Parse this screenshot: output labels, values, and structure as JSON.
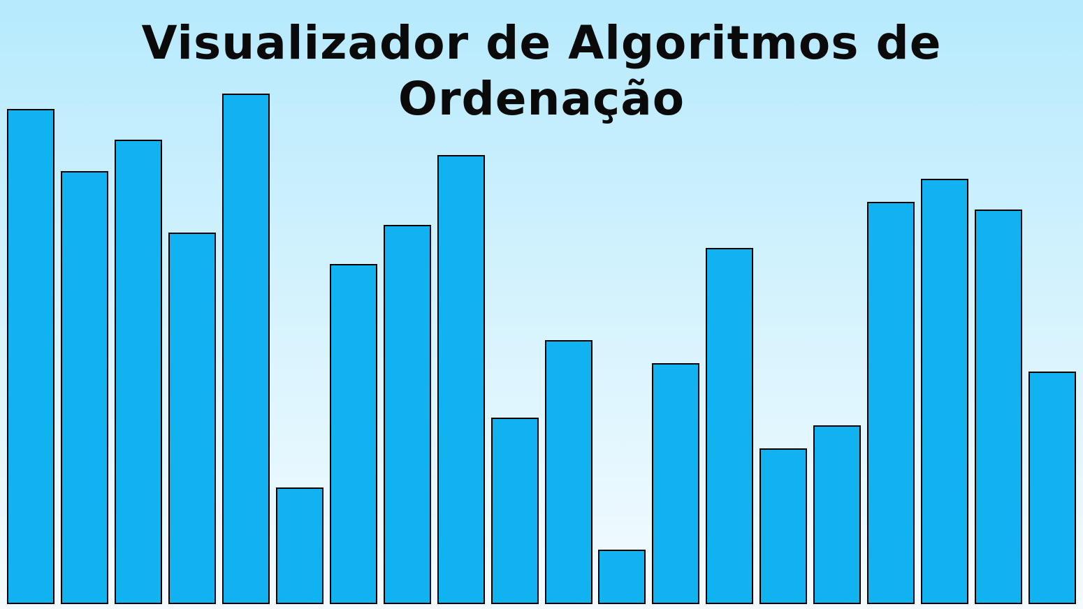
{
  "title": "Visualizador de Algoritmos de Ordenação",
  "bar_color": "#10b2ef",
  "border_color": "#000000",
  "chart_data": {
    "type": "bar",
    "values": [
      645,
      564,
      605,
      484,
      665,
      152,
      443,
      494,
      585,
      243,
      344,
      71,
      314,
      464,
      203,
      233,
      524,
      554,
      514,
      303
    ]
  }
}
